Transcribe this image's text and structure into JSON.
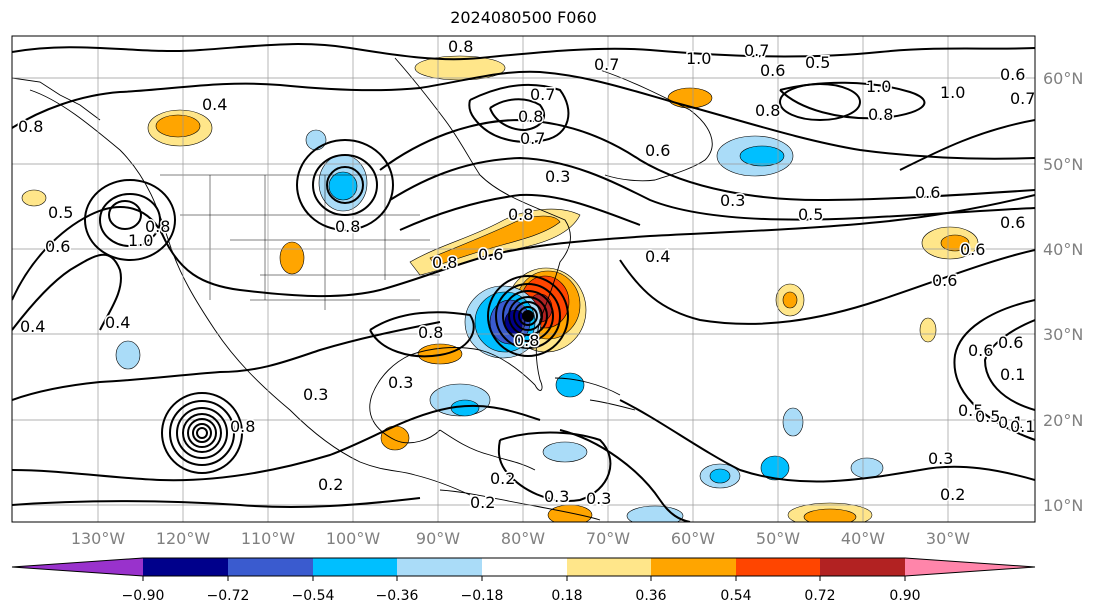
{
  "title": "2024080500 F060",
  "map": {
    "lon_labels": [
      "130°W",
      "120°W",
      "110°W",
      "100°W",
      "90°W",
      "80°W",
      "70°W",
      "60°W",
      "50°W",
      "40°W",
      "30°W"
    ],
    "lat_labels": [
      "60°N",
      "50°N",
      "40°N",
      "30°N",
      "20°N",
      "10°N"
    ],
    "axis_label_color": "#808080"
  },
  "contours": {
    "line_color": "#000000",
    "labels": [
      "0.8",
      "1.0",
      "0.7",
      "0.5",
      "0.6",
      "0.7",
      "0.7",
      "0.8",
      "0.6",
      "1.0",
      "0.8",
      "1.0",
      "0.4",
      "0.8",
      "0.6",
      "0.8",
      "0.7",
      "0.8",
      "0.3",
      "0.3",
      "0.8",
      "0.5",
      "0.6",
      "0.6",
      "0.5",
      "0.8",
      "1.0",
      "0.6",
      "0.4",
      "0.4",
      "0.8",
      "0.6",
      "0.8",
      "0.6",
      "0.4",
      "0.6",
      "0.8",
      "0.8",
      "0.6",
      "0.3",
      "0.5",
      "0.3",
      "0.2",
      "0.2",
      "0.3",
      "0.2",
      "0.3",
      "0.1",
      "0.1",
      "0.5",
      "0.7",
      "0.3",
      "0.2",
      "0.6",
      "0.1"
    ]
  },
  "colorbar": {
    "tick_labels": [
      "−0.90",
      "−0.72",
      "−0.54",
      "−0.36",
      "−0.18",
      "0.18",
      "0.36",
      "0.54",
      "0.72",
      "0.90"
    ],
    "colors": [
      "#9932cc",
      "#00008b",
      "#3a5bcf",
      "#00bfff",
      "#aadcf8",
      "#ffffff",
      "#ffe68a",
      "#ffa500",
      "#ff4500",
      "#b22222",
      "#ff85aa"
    ]
  }
}
